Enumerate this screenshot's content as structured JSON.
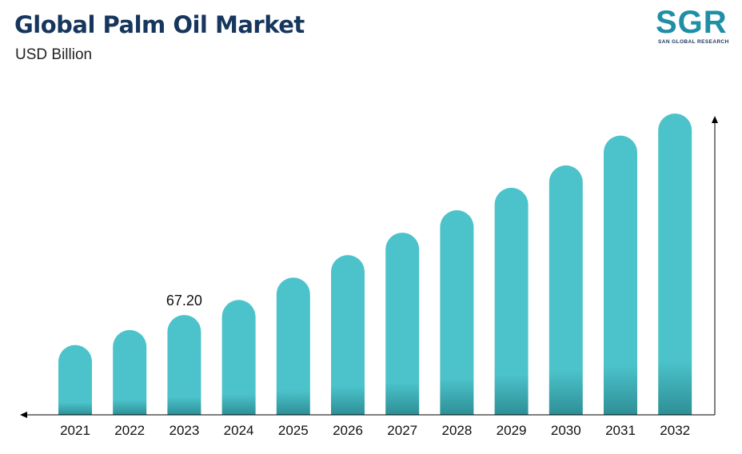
{
  "header": {
    "title": "Global Palm Oil Market",
    "subtitle": "USD Billion"
  },
  "logo": {
    "text": "SGR",
    "tagline": "SAN GLOBAL RESEARCH"
  },
  "colors": {
    "bar": "#4cc3cb",
    "bar_shadow": "#2e8f96",
    "title": "#17365d",
    "axis": "#000000"
  },
  "chart_data": {
    "type": "bar",
    "title": "Global Palm Oil Market",
    "ylabel": "USD Billion",
    "xlabel": "",
    "categories": [
      "2021",
      "2022",
      "2023",
      "2024",
      "2025",
      "2026",
      "2027",
      "2028",
      "2029",
      "2030",
      "2031",
      "2032"
    ],
    "values": [
      47.0,
      57.1,
      67.2,
      77.3,
      92.4,
      107.5,
      122.6,
      137.7,
      152.8,
      167.9,
      187.9,
      202.8
    ],
    "data_labels": [
      {
        "index": 2,
        "text": "67.20"
      }
    ],
    "ylim": [
      0,
      220
    ],
    "grid": false,
    "legend": "none"
  }
}
